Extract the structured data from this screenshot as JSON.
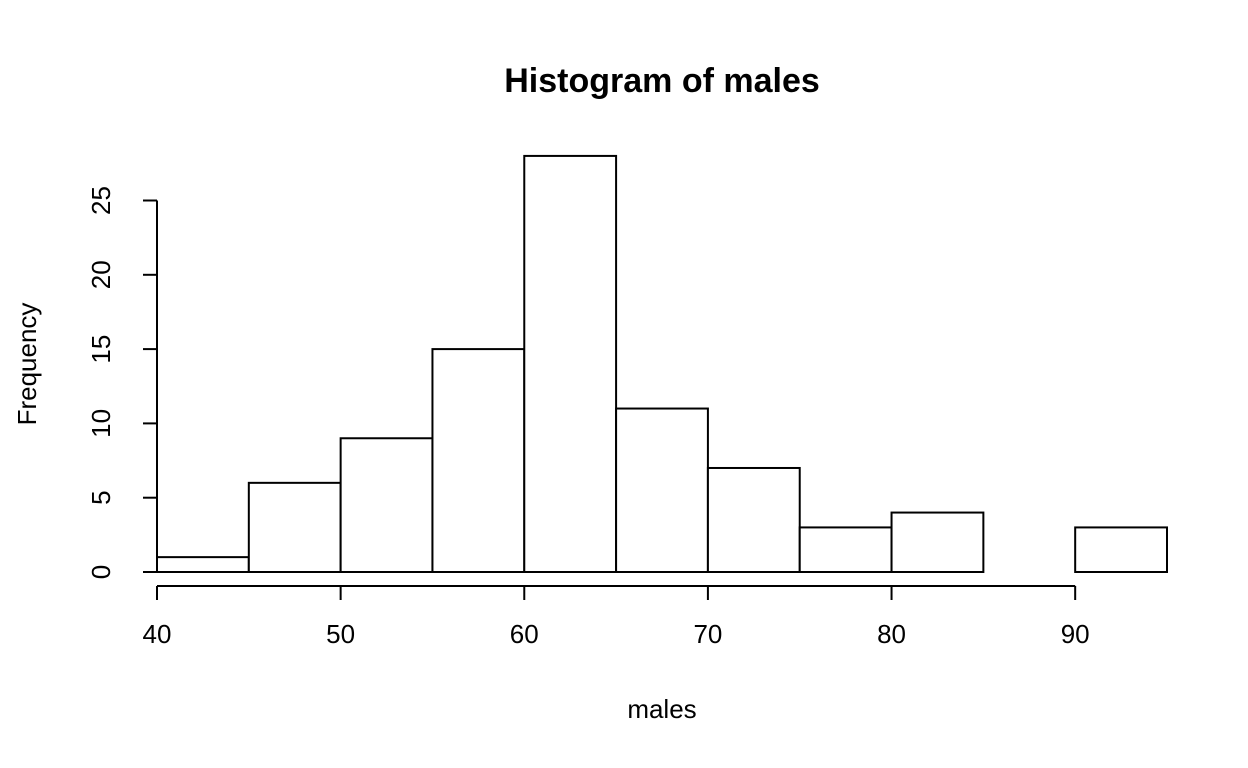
{
  "chart_data": {
    "type": "bar",
    "title": "Histogram of males",
    "xlabel": "males",
    "ylabel": "Frequency",
    "bins": [
      {
        "start": 40,
        "end": 45,
        "count": 1
      },
      {
        "start": 45,
        "end": 50,
        "count": 6
      },
      {
        "start": 50,
        "end": 55,
        "count": 9
      },
      {
        "start": 55,
        "end": 60,
        "count": 15
      },
      {
        "start": 60,
        "end": 65,
        "count": 28
      },
      {
        "start": 65,
        "end": 70,
        "count": 11
      },
      {
        "start": 70,
        "end": 75,
        "count": 7
      },
      {
        "start": 75,
        "end": 80,
        "count": 3
      },
      {
        "start": 80,
        "end": 85,
        "count": 4
      },
      {
        "start": 85,
        "end": 90,
        "count": 0
      },
      {
        "start": 90,
        "end": 95,
        "count": 3
      }
    ],
    "x_ticks": [
      "40",
      "50",
      "60",
      "70",
      "80",
      "90"
    ],
    "y_ticks": [
      "0",
      "5",
      "10",
      "15",
      "20",
      "25"
    ],
    "xlim": [
      40,
      95
    ],
    "ylim": [
      0,
      28
    ],
    "grid": false,
    "colors": {
      "bar_fill": "#ffffff",
      "bar_stroke": "#000000"
    }
  }
}
